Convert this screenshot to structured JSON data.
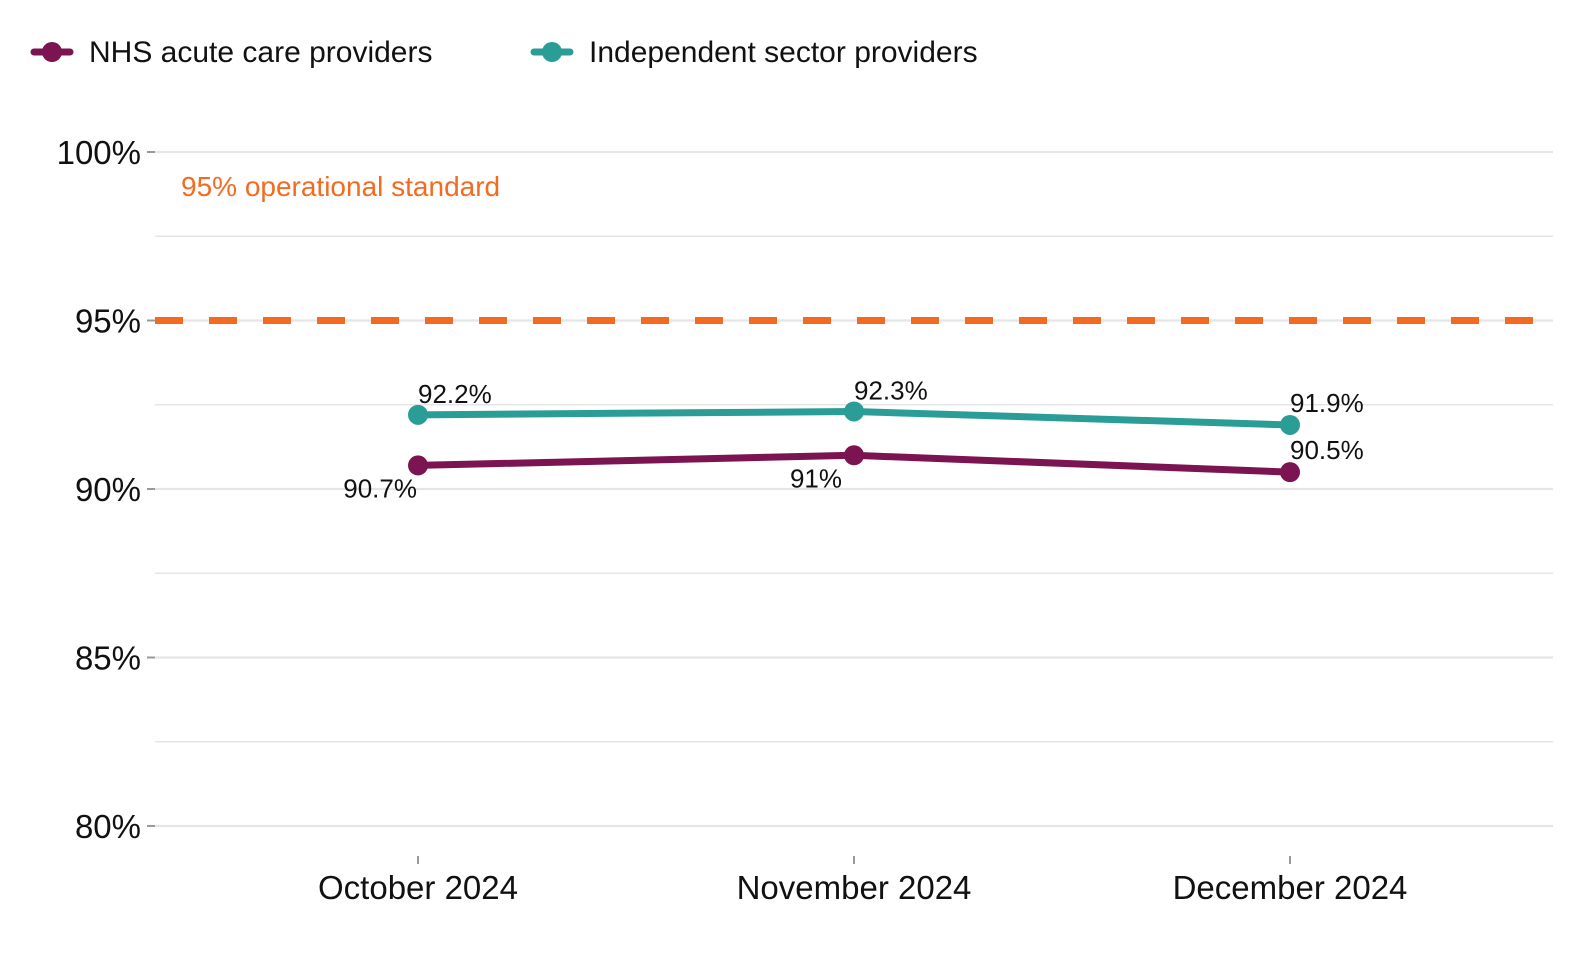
{
  "chart_data": {
    "type": "line",
    "title": "",
    "xlabel": "",
    "ylabel": "",
    "categories": [
      "October 2024",
      "November 2024",
      "December 2024"
    ],
    "series": [
      {
        "name": "NHS acute care providers",
        "color": "#7b1450",
        "values": [
          90.7,
          91.0,
          90.5
        ],
        "labels": [
          "90.7%",
          "91%",
          "90.5%"
        ]
      },
      {
        "name": "Independent sector providers",
        "color": "#2a9d96",
        "values": [
          92.2,
          92.3,
          91.9
        ],
        "labels": [
          "92.2%",
          "92.3%",
          "91.9%"
        ]
      }
    ],
    "ylim": [
      80,
      100
    ],
    "y_ticks": [
      80,
      85,
      90,
      95,
      100
    ],
    "y_tick_labels": [
      "80%",
      "85%",
      "90%",
      "95%",
      "100%"
    ],
    "reference_line": {
      "value": 95,
      "label": "95% operational standard",
      "color": "#f26b21",
      "style": "dashed"
    },
    "grid": true,
    "legend_position": "top-left"
  }
}
